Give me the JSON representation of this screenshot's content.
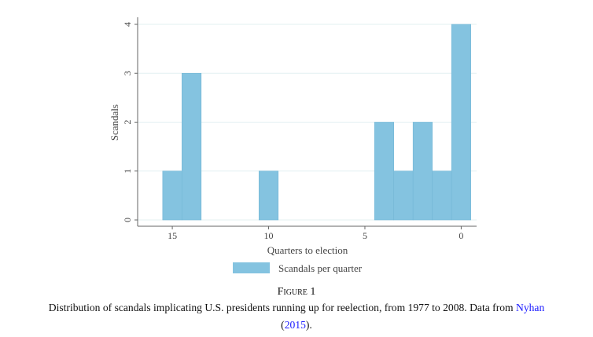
{
  "chart_data": {
    "type": "bar",
    "title": "",
    "xlabel": "Quarters to election",
    "ylabel": "Scandals",
    "x": [
      15,
      14,
      10,
      4,
      3,
      2,
      1,
      0
    ],
    "values": [
      1,
      3,
      1,
      2,
      1,
      2,
      1,
      4
    ],
    "bar_width": 1,
    "xlim": [
      16.8,
      -0.8
    ],
    "ylim": [
      0,
      4
    ],
    "x_reversed": true,
    "xticks": [
      "15",
      "10",
      "5",
      "0"
    ],
    "xtick_values": [
      15,
      10,
      5,
      0
    ],
    "yticks": [
      "0",
      "1",
      "2",
      "3",
      "4"
    ],
    "ytick_values": [
      0,
      1,
      2,
      3,
      4
    ],
    "grid": true,
    "legend": {
      "position": "bottom-center",
      "entries": [
        "Scandals per quarter"
      ]
    },
    "colors": {
      "bar": "#84c3e0",
      "bar_edge": "#74b7d6",
      "grid": "#e3f0f2",
      "axis": "#666666"
    }
  },
  "caption": {
    "figure_label": "Figure 1",
    "text": "Distribution of scandals implicating U.S. presidents running up for reelection, from 1977 to 2008. Data from ",
    "cite_author": "Nyhan",
    "cite_year": "2015",
    "open_paren": "(",
    "close": ")."
  }
}
